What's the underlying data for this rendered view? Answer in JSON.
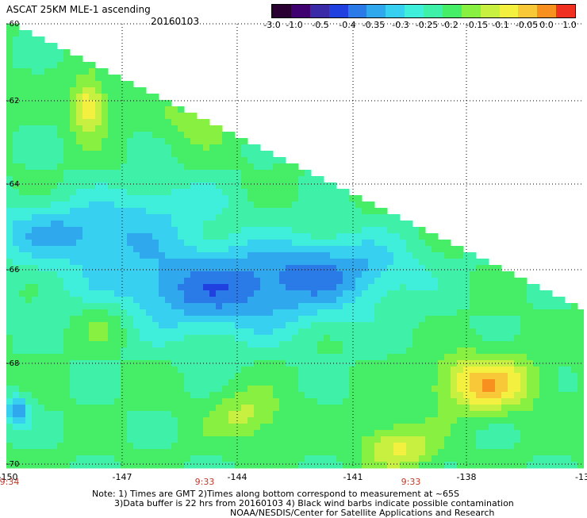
{
  "header": {
    "title": "ASCAT 25KM MLE-1 ascending",
    "date": "20160103"
  },
  "colorbar": {
    "colors": [
      "#2a0033",
      "#3f0070",
      "#3a2aa8",
      "#2040e0",
      "#2a7ae8",
      "#30a8ee",
      "#38d0f0",
      "#40eedc",
      "#3ef0a8",
      "#45ee66",
      "#88f040",
      "#c8f040",
      "#f4f040",
      "#f8c838",
      "#f89020",
      "#f03020"
    ],
    "labels": [
      "-3.0",
      "-1.0",
      "-0.5",
      "-0.4",
      "-0.35",
      "-0.3",
      "-0.25",
      "-0.2",
      "-0.15",
      "-0.1",
      "-0.05",
      "0.0",
      "1.0"
    ]
  },
  "map": {
    "y_labels": [
      "-60",
      "-62",
      "-64",
      "-66",
      "-68",
      "-70"
    ],
    "x_labels": [
      "-150",
      "-147",
      "-144",
      "-141",
      "-138",
      "-13"
    ],
    "time_labels": [
      "9:34",
      "9:33",
      "9:33"
    ]
  },
  "notes": {
    "line1": "Note: 1) Times are GMT 2)Times along bottom correspond to measurement at ~65S",
    "line2": "3)Data buffer is 22 hrs from 20160103 4) Black wind barbs indicate possible contamination",
    "line3": "NOAA/NESDIS/Center for Satellite Applications and Research"
  }
}
